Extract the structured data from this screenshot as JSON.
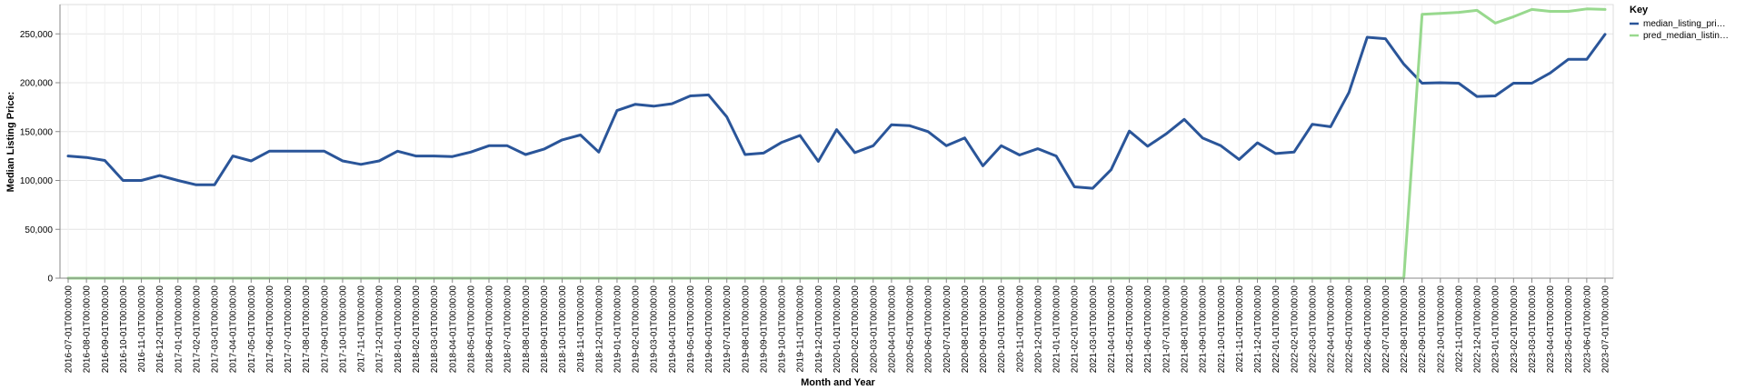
{
  "chart_data": {
    "type": "line",
    "xlabel": "Month and Year",
    "ylabel": "Median Listing Price:",
    "ylim": [
      0,
      280000
    ],
    "yticks": [
      0,
      50000,
      100000,
      150000,
      200000,
      250000
    ],
    "ytick_labels": [
      "0",
      "50,000",
      "100,000",
      "150,000",
      "200,000",
      "250,000"
    ],
    "grid": true,
    "legend": {
      "title": "Key",
      "position": "right"
    },
    "x": [
      "2016-07-01T00:00:00",
      "2016-08-01T00:00:00",
      "2016-09-01T00:00:00",
      "2016-10-01T00:00:00",
      "2016-11-01T00:00:00",
      "2016-12-01T00:00:00",
      "2017-01-01T00:00:00",
      "2017-02-01T00:00:00",
      "2017-03-01T00:00:00",
      "2017-04-01T00:00:00",
      "2017-05-01T00:00:00",
      "2017-06-01T00:00:00",
      "2017-07-01T00:00:00",
      "2017-08-01T00:00:00",
      "2017-09-01T00:00:00",
      "2017-10-01T00:00:00",
      "2017-11-01T00:00:00",
      "2017-12-01T00:00:00",
      "2018-01-01T00:00:00",
      "2018-02-01T00:00:00",
      "2018-03-01T00:00:00",
      "2018-04-01T00:00:00",
      "2018-05-01T00:00:00",
      "2018-06-01T00:00:00",
      "2018-07-01T00:00:00",
      "2018-08-01T00:00:00",
      "2018-09-01T00:00:00",
      "2018-10-01T00:00:00",
      "2018-11-01T00:00:00",
      "2018-12-01T00:00:00",
      "2019-01-01T00:00:00",
      "2019-02-01T00:00:00",
      "2019-03-01T00:00:00",
      "2019-04-01T00:00:00",
      "2019-05-01T00:00:00",
      "2019-06-01T00:00:00",
      "2019-07-01T00:00:00",
      "2019-08-01T00:00:00",
      "2019-09-01T00:00:00",
      "2019-10-01T00:00:00",
      "2019-11-01T00:00:00",
      "2019-12-01T00:00:00",
      "2020-01-01T00:00:00",
      "2020-02-01T00:00:00",
      "2020-03-01T00:00:00",
      "2020-04-01T00:00:00",
      "2020-05-01T00:00:00",
      "2020-06-01T00:00:00",
      "2020-07-01T00:00:00",
      "2020-08-01T00:00:00",
      "2020-09-01T00:00:00",
      "2020-10-01T00:00:00",
      "2020-11-01T00:00:00",
      "2020-12-01T00:00:00",
      "2021-01-01T00:00:00",
      "2021-02-01T00:00:00",
      "2021-03-01T00:00:00",
      "2021-04-01T00:00:00",
      "2021-05-01T00:00:00",
      "2021-06-01T00:00:00",
      "2021-07-01T00:00:00",
      "2021-08-01T00:00:00",
      "2021-09-01T00:00:00",
      "2021-10-01T00:00:00",
      "2021-11-01T00:00:00",
      "2021-12-01T00:00:00",
      "2022-01-01T00:00:00",
      "2022-02-01T00:00:00",
      "2022-03-01T00:00:00",
      "2022-04-01T00:00:00",
      "2022-05-01T00:00:00",
      "2022-06-01T00:00:00",
      "2022-07-01T00:00:00",
      "2022-08-01T00:00:00",
      "2022-09-01T00:00:00",
      "2022-10-01T00:00:00",
      "2022-11-01T00:00:00",
      "2022-12-01T00:00:00",
      "2023-01-01T00:00:00",
      "2023-02-01T00:00:00",
      "2023-03-01T00:00:00",
      "2023-04-01T00:00:00",
      "2023-05-01T00:00:00",
      "2023-06-01T00:00:00",
      "2023-07-01T00:00:00"
    ],
    "series": [
      {
        "name": "median_listing_pri…",
        "color": "#2a5599",
        "values": [
          125000,
          123500,
          120500,
          100000,
          100000,
          105000,
          100000,
          95500,
          95500,
          125000,
          120000,
          130000,
          130000,
          130000,
          130000,
          120000,
          116500,
          120000,
          130000,
          125000,
          125000,
          124500,
          129000,
          135500,
          135500,
          126500,
          132000,
          141500,
          146500,
          129000,
          171500,
          178000,
          176000,
          178500,
          186500,
          187500,
          165000,
          126500,
          128000,
          139000,
          146000,
          119500,
          152000,
          128500,
          135500,
          157000,
          156000,
          150000,
          135500,
          143500,
          115000,
          135500,
          126000,
          132500,
          125000,
          93500,
          92000,
          111000,
          150500,
          135000,
          147500,
          162500,
          143500,
          135500,
          121500,
          138500,
          127500,
          129000,
          157500,
          155000,
          190000,
          246500,
          245000,
          219000,
          199500,
          200000,
          199500,
          186000,
          186500,
          199500,
          199500,
          210000,
          224000,
          224000,
          249500
        ]
      },
      {
        "name": "pred_median_listin…",
        "color": "#98d98e",
        "values": [
          0,
          0,
          0,
          0,
          0,
          0,
          0,
          0,
          0,
          0,
          0,
          0,
          0,
          0,
          0,
          0,
          0,
          0,
          0,
          0,
          0,
          0,
          0,
          0,
          0,
          0,
          0,
          0,
          0,
          0,
          0,
          0,
          0,
          0,
          0,
          0,
          0,
          0,
          0,
          0,
          0,
          0,
          0,
          0,
          0,
          0,
          0,
          0,
          0,
          0,
          0,
          0,
          0,
          0,
          0,
          0,
          0,
          0,
          0,
          0,
          0,
          0,
          0,
          0,
          0,
          0,
          0,
          0,
          0,
          0,
          0,
          0,
          0,
          0,
          270000,
          271000,
          272000,
          274000,
          261000,
          267500,
          275000,
          273000,
          273000,
          275500,
          275000
        ]
      }
    ]
  }
}
